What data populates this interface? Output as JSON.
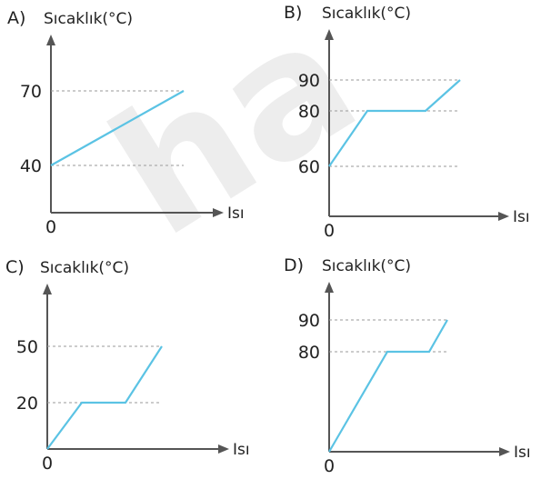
{
  "watermark_text": "ha",
  "chart_data": [
    {
      "type": "line",
      "option": "A)",
      "ylabel": "Sıcaklık(°C)",
      "xlabel": "Isı",
      "origin_label": "0",
      "yticks": [
        40,
        70
      ],
      "ylim": [
        0,
        90
      ],
      "xlim": [
        0,
        10
      ],
      "series": [
        {
          "x": [
            0,
            7.3
          ],
          "y": [
            40,
            70
          ]
        }
      ],
      "line_color": "#5bc3e4"
    },
    {
      "type": "line",
      "option": "B)",
      "ylabel": "Sıcaklık(°C)",
      "xlabel": "Isı",
      "origin_label": "0",
      "yticks": [
        60,
        80,
        90
      ],
      "ylim": [
        0,
        100
      ],
      "xlim": [
        0,
        10
      ],
      "series": [
        {
          "x": [
            0,
            2.1,
            5.3,
            7.2
          ],
          "y": [
            60,
            80,
            80,
            90
          ]
        }
      ],
      "line_color": "#5bc3e4"
    },
    {
      "type": "line",
      "option": "C)",
      "ylabel": "Sıcaklık(°C)",
      "xlabel": "Isı",
      "origin_label": "0",
      "yticks": [
        20,
        50
      ],
      "ylim": [
        0,
        70
      ],
      "xlim": [
        0,
        10
      ],
      "series": [
        {
          "x": [
            0,
            1.9,
            4.3,
            6.3
          ],
          "y": [
            0,
            20,
            20,
            50
          ]
        }
      ],
      "line_color": "#5bc3e4"
    },
    {
      "type": "line",
      "option": "D)",
      "ylabel": "Sıcaklık(°C)",
      "xlabel": "Isı",
      "origin_label": "0",
      "yticks": [
        80,
        90
      ],
      "ylim": [
        0,
        100
      ],
      "xlim": [
        0,
        10
      ],
      "series": [
        {
          "x": [
            0,
            3.2,
            5.5,
            6.5
          ],
          "y": [
            0,
            80,
            80,
            90
          ]
        }
      ],
      "line_color": "#5bc3e4"
    }
  ]
}
